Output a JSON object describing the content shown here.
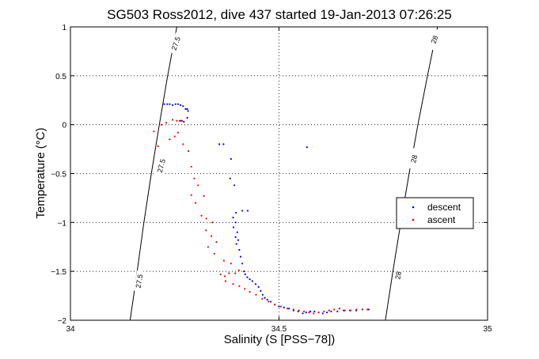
{
  "chart_data": {
    "type": "scatter",
    "title": "SG503 Ross2012, dive 437 started 19-Jan-2013 07:26:25",
    "xlabel": "Salinity (S [PSS−78])",
    "ylabel": "Temperature (°C)",
    "xlim": [
      34,
      35
    ],
    "ylim": [
      -2,
      1
    ],
    "xticks": [
      34,
      34.5,
      35
    ],
    "xtick_labels": [
      "34",
      "34.5",
      "35"
    ],
    "yticks": [
      -2,
      -1.5,
      -1,
      -0.5,
      0,
      0.5,
      1
    ],
    "ytick_labels": [
      "−2",
      "−1.5",
      "−1",
      "−0.5",
      "0",
      "0.5",
      "1"
    ],
    "grid": true,
    "legend_position": "right",
    "isopycnals": [
      {
        "label": "27.5",
        "color": "#000000",
        "points": [
          [
            34.143,
            -2
          ],
          [
            34.16,
            -1.5
          ],
          [
            34.176,
            -1
          ],
          [
            34.194,
            -0.5
          ],
          [
            34.213,
            0
          ],
          [
            34.233,
            0.5
          ],
          [
            34.255,
            1
          ]
        ]
      },
      {
        "label": "28",
        "color": "#000000",
        "points": [
          [
            34.755,
            -2
          ],
          [
            34.773,
            -1.5
          ],
          [
            34.792,
            -1
          ],
          [
            34.812,
            -0.5
          ],
          [
            34.833,
            0
          ],
          [
            34.856,
            0.5
          ],
          [
            34.88,
            1
          ]
        ]
      }
    ],
    "contour_labels": [
      {
        "text": "27.5",
        "x": 34.253,
        "y": 0.83,
        "angle": -70
      },
      {
        "text": "27.5",
        "x": 34.218,
        "y": -0.42,
        "angle": -76
      },
      {
        "text": "27.5",
        "x": 34.165,
        "y": -1.6,
        "angle": -80
      },
      {
        "text": "28",
        "x": 34.873,
        "y": 0.87,
        "angle": -70
      },
      {
        "text": "28",
        "x": 34.824,
        "y": -0.35,
        "angle": -76
      },
      {
        "text": "28",
        "x": 34.786,
        "y": -1.54,
        "angle": -80
      }
    ],
    "series": [
      {
        "name": "descent",
        "color": "#0000ff",
        "marker": "dot",
        "points": [
          [
            34.225,
            0.21
          ],
          [
            34.232,
            0.21
          ],
          [
            34.238,
            0.21
          ],
          [
            34.245,
            0.2
          ],
          [
            34.252,
            0.21
          ],
          [
            34.258,
            0.21
          ],
          [
            34.264,
            0.2
          ],
          [
            34.27,
            0.19
          ],
          [
            34.276,
            0.16
          ],
          [
            34.282,
            0.14
          ],
          [
            34.265,
            0.04
          ],
          [
            34.272,
            0.03
          ],
          [
            34.28,
            0.07
          ],
          [
            34.28,
            0.16
          ],
          [
            34.357,
            -0.2
          ],
          [
            34.367,
            -0.2
          ],
          [
            34.385,
            -0.35
          ],
          [
            34.383,
            -0.55
          ],
          [
            34.393,
            -0.62
          ],
          [
            34.397,
            -0.9
          ],
          [
            34.412,
            -0.88
          ],
          [
            34.425,
            -0.88
          ],
          [
            34.39,
            -0.95
          ],
          [
            34.396,
            -1.0
          ],
          [
            34.391,
            -1.05
          ],
          [
            34.4,
            -1.1
          ],
          [
            34.396,
            -1.15
          ],
          [
            34.402,
            -1.18
          ],
          [
            34.398,
            -1.22
          ],
          [
            34.405,
            -1.28
          ],
          [
            34.408,
            -1.35
          ],
          [
            34.412,
            -1.42
          ],
          [
            34.416,
            -1.5
          ],
          [
            34.419,
            -1.53
          ],
          [
            34.424,
            -1.56
          ],
          [
            34.43,
            -1.58
          ],
          [
            34.436,
            -1.6
          ],
          [
            34.444,
            -1.63
          ],
          [
            34.451,
            -1.66
          ],
          [
            34.456,
            -1.7
          ],
          [
            34.461,
            -1.74
          ],
          [
            34.466,
            -1.77
          ],
          [
            34.472,
            -1.79
          ],
          [
            34.48,
            -1.81
          ],
          [
            34.49,
            -1.84
          ],
          [
            34.5,
            -1.86
          ],
          [
            34.512,
            -1.87
          ],
          [
            34.524,
            -1.88
          ],
          [
            34.535,
            -1.9
          ],
          [
            34.546,
            -1.91
          ],
          [
            34.557,
            -1.93
          ],
          [
            34.565,
            -1.92
          ],
          [
            34.575,
            -1.91
          ],
          [
            34.585,
            -1.91
          ],
          [
            34.595,
            -1.92
          ],
          [
            34.605,
            -1.93
          ],
          [
            34.615,
            -1.92
          ],
          [
            34.625,
            -1.91
          ],
          [
            34.64,
            -1.91
          ],
          [
            34.655,
            -1.9
          ],
          [
            34.67,
            -1.9
          ],
          [
            34.685,
            -1.9
          ],
          [
            34.7,
            -1.89
          ],
          [
            34.715,
            -1.89
          ],
          [
            34.567,
            -0.23
          ]
        ]
      },
      {
        "name": "ascent",
        "color": "#ff0000",
        "marker": "dot",
        "points": [
          [
            34.2,
            -0.07
          ],
          [
            34.21,
            -0.22
          ],
          [
            34.218,
            0.0
          ],
          [
            34.23,
            0.02
          ],
          [
            34.245,
            0.05
          ],
          [
            34.255,
            0.04
          ],
          [
            34.262,
            0.04
          ],
          [
            34.268,
            0.04
          ],
          [
            34.238,
            -0.15
          ],
          [
            34.258,
            -0.08
          ],
          [
            34.27,
            -0.2
          ],
          [
            34.283,
            -0.27
          ],
          [
            34.29,
            -0.43
          ],
          [
            34.297,
            -0.55
          ],
          [
            34.306,
            -0.62
          ],
          [
            34.29,
            -0.72
          ],
          [
            34.3,
            -0.8
          ],
          [
            34.32,
            -0.73
          ],
          [
            34.314,
            -0.93
          ],
          [
            34.326,
            -0.96
          ],
          [
            34.34,
            -1.0
          ],
          [
            34.325,
            -1.08
          ],
          [
            34.338,
            -1.14
          ],
          [
            34.35,
            -1.2
          ],
          [
            34.33,
            -1.25
          ],
          [
            34.345,
            -1.32
          ],
          [
            34.368,
            -1.39
          ],
          [
            34.385,
            -1.42
          ],
          [
            34.395,
            -1.52
          ],
          [
            34.404,
            -1.49
          ],
          [
            34.38,
            -1.52
          ],
          [
            34.37,
            -1.55
          ],
          [
            34.36,
            -1.53
          ],
          [
            34.372,
            -1.6
          ],
          [
            34.39,
            -1.63
          ],
          [
            34.405,
            -1.65
          ],
          [
            34.418,
            -1.68
          ],
          [
            34.43,
            -1.71
          ],
          [
            34.445,
            -1.74
          ],
          [
            34.46,
            -1.78
          ],
          [
            34.475,
            -1.81
          ],
          [
            34.49,
            -1.84
          ],
          [
            34.505,
            -1.86
          ],
          [
            34.52,
            -1.88
          ],
          [
            34.535,
            -1.89
          ],
          [
            34.548,
            -1.9
          ],
          [
            34.56,
            -1.91
          ],
          [
            34.572,
            -1.92
          ],
          [
            34.583,
            -1.93
          ],
          [
            34.595,
            -1.92
          ],
          [
            34.608,
            -1.91
          ],
          [
            34.62,
            -1.9
          ],
          [
            34.632,
            -1.89
          ],
          [
            34.645,
            -1.88
          ],
          [
            34.658,
            -1.9
          ],
          [
            34.672,
            -1.9
          ],
          [
            34.686,
            -1.89
          ],
          [
            34.7,
            -1.89
          ],
          [
            34.712,
            -1.89
          ],
          [
            34.25,
            -0.12
          ]
        ]
      }
    ]
  }
}
